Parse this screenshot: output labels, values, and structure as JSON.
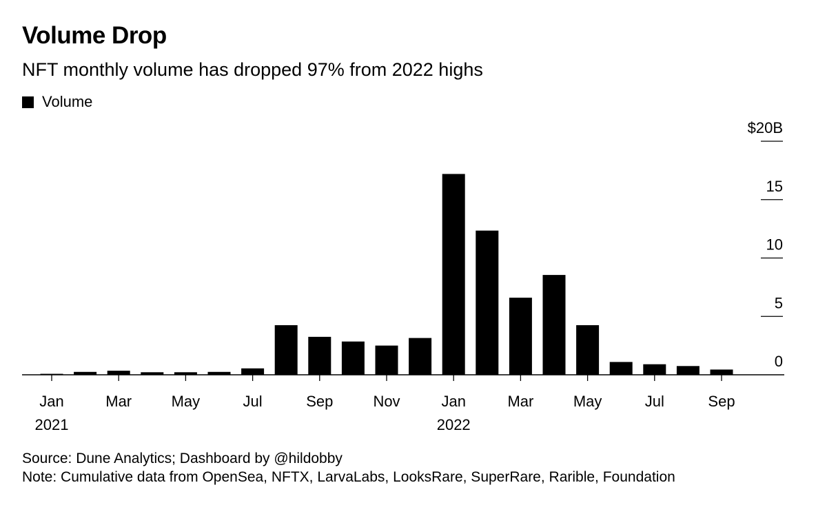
{
  "header": {
    "title": "Volume Drop",
    "subtitle": "NFT monthly volume has dropped 97% from 2022 highs"
  },
  "legend": {
    "label": "Volume",
    "color": "#000000"
  },
  "footer": {
    "source": "Source: Dune Analytics; Dashboard by @hildobby",
    "note": "Note: Cumulative data from OpenSea, NFTX, LarvaLabs, LooksRare, SuperRare, Rarible, Foundation"
  },
  "chart_data": {
    "type": "bar",
    "categories": [
      "Jan 2021",
      "Feb 2021",
      "Mar 2021",
      "Apr 2021",
      "May 2021",
      "Jun 2021",
      "Jul 2021",
      "Aug 2021",
      "Sep 2021",
      "Oct 2021",
      "Nov 2021",
      "Dec 2021",
      "Jan 2022",
      "Feb 2022",
      "Mar 2022",
      "Apr 2022",
      "May 2022",
      "Jun 2022",
      "Jul 2022",
      "Aug 2022",
      "Sep 2022"
    ],
    "series": [
      {
        "name": "Volume",
        "values": [
          0.08,
          0.25,
          0.35,
          0.22,
          0.22,
          0.25,
          0.55,
          4.25,
          3.25,
          2.85,
          2.5,
          3.15,
          17.2,
          12.35,
          6.6,
          8.55,
          4.25,
          1.1,
          0.9,
          0.75,
          0.45
        ]
      }
    ],
    "y_axis": {
      "min": 0,
      "max": 20,
      "ticks": [
        0,
        5,
        10,
        15,
        20
      ],
      "tick_labels": [
        "0",
        "5",
        "10",
        "15",
        "$20B"
      ],
      "position": "right"
    },
    "x_axis": {
      "tick_labels": [
        {
          "month": "Jan",
          "year": "2021",
          "index": 0
        },
        {
          "month": "Mar",
          "year": "",
          "index": 2
        },
        {
          "month": "May",
          "year": "",
          "index": 4
        },
        {
          "month": "Jul",
          "year": "",
          "index": 6
        },
        {
          "month": "Sep",
          "year": "",
          "index": 8
        },
        {
          "month": "Nov",
          "year": "",
          "index": 10
        },
        {
          "month": "Jan",
          "year": "2022",
          "index": 12
        },
        {
          "month": "Mar",
          "year": "",
          "index": 14
        },
        {
          "month": "May",
          "year": "",
          "index": 16
        },
        {
          "month": "Jul",
          "year": "",
          "index": 18
        },
        {
          "month": "Sep",
          "year": "",
          "index": 20
        }
      ]
    },
    "grid": false,
    "legend_placement": "top-left",
    "bar_color": "#000000"
  }
}
